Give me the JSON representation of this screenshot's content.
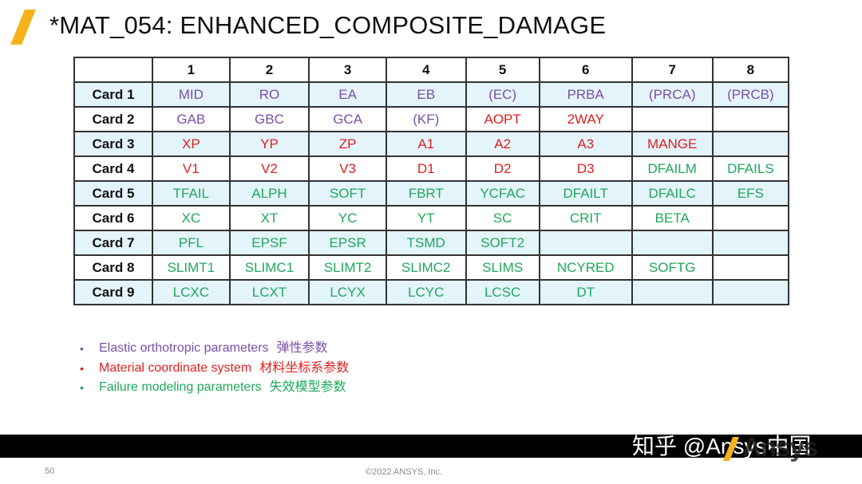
{
  "slide": {
    "title": "*MAT_054: ENHANCED_COMPOSITE_DAMAGE",
    "page_number": "50",
    "copyright": "©2022 ANSYS, Inc.",
    "watermark": "知乎 @Ansys中国",
    "logo_text": "Ansys"
  },
  "colors": {
    "accent_slash": "#f5b21b",
    "elastic": "#7a4fa6",
    "coordinate": "#e01f1f",
    "failure": "#1fa85a",
    "row_shade": "#e4f4fb"
  },
  "table": {
    "columns": [
      "",
      "1",
      "2",
      "3",
      "4",
      "5",
      "6",
      "7",
      "8"
    ],
    "rows": [
      {
        "label": "Card 1",
        "cells": [
          {
            "text": "MID",
            "cat": "purple"
          },
          {
            "text": "RO",
            "cat": "purple"
          },
          {
            "text": "EA",
            "cat": "purple"
          },
          {
            "text": "EB",
            "cat": "purple"
          },
          {
            "text": "(EC)",
            "cat": "purple"
          },
          {
            "text": "PRBA",
            "cat": "purple"
          },
          {
            "text": "(PRCA)",
            "cat": "purple"
          },
          {
            "text": "(PRCB)",
            "cat": "purple"
          }
        ]
      },
      {
        "label": "Card 2",
        "cells": [
          {
            "text": "GAB",
            "cat": "purple"
          },
          {
            "text": "GBC",
            "cat": "purple"
          },
          {
            "text": "GCA",
            "cat": "purple"
          },
          {
            "text": "(KF)",
            "cat": "purple"
          },
          {
            "text": "AOPT",
            "cat": "red"
          },
          {
            "text": "2WAY",
            "cat": "red"
          },
          {
            "text": "",
            "cat": ""
          },
          {
            "text": "",
            "cat": ""
          }
        ]
      },
      {
        "label": "Card 3",
        "cells": [
          {
            "text": "XP",
            "cat": "red"
          },
          {
            "text": "YP",
            "cat": "red"
          },
          {
            "text": "ZP",
            "cat": "red"
          },
          {
            "text": "A1",
            "cat": "red"
          },
          {
            "text": "A2",
            "cat": "red"
          },
          {
            "text": "A3",
            "cat": "red"
          },
          {
            "text": "MANGE",
            "cat": "red"
          },
          {
            "text": "",
            "cat": ""
          }
        ]
      },
      {
        "label": "Card 4",
        "cells": [
          {
            "text": "V1",
            "cat": "red"
          },
          {
            "text": "V2",
            "cat": "red"
          },
          {
            "text": "V3",
            "cat": "red"
          },
          {
            "text": "D1",
            "cat": "red"
          },
          {
            "text": "D2",
            "cat": "red"
          },
          {
            "text": "D3",
            "cat": "red"
          },
          {
            "text": "DFAILM",
            "cat": "green"
          },
          {
            "text": "DFAILS",
            "cat": "green"
          }
        ]
      },
      {
        "label": "Card 5",
        "cells": [
          {
            "text": "TFAIL",
            "cat": "green"
          },
          {
            "text": "ALPH",
            "cat": "green"
          },
          {
            "text": "SOFT",
            "cat": "green"
          },
          {
            "text": "FBRT",
            "cat": "green"
          },
          {
            "text": "YCFAC",
            "cat": "green"
          },
          {
            "text": "DFAILT",
            "cat": "green"
          },
          {
            "text": "DFAILC",
            "cat": "green"
          },
          {
            "text": "EFS",
            "cat": "green"
          }
        ]
      },
      {
        "label": "Card 6",
        "cells": [
          {
            "text": "XC",
            "cat": "green"
          },
          {
            "text": "XT",
            "cat": "green"
          },
          {
            "text": "YC",
            "cat": "green"
          },
          {
            "text": "YT",
            "cat": "green"
          },
          {
            "text": "SC",
            "cat": "green"
          },
          {
            "text": "CRIT",
            "cat": "green"
          },
          {
            "text": "BETA",
            "cat": "green"
          },
          {
            "text": "",
            "cat": ""
          }
        ]
      },
      {
        "label": "Card 7",
        "cells": [
          {
            "text": "PFL",
            "cat": "green"
          },
          {
            "text": "EPSF",
            "cat": "green"
          },
          {
            "text": "EPSR",
            "cat": "green"
          },
          {
            "text": "TSMD",
            "cat": "green"
          },
          {
            "text": "SOFT2",
            "cat": "green"
          },
          {
            "text": "",
            "cat": ""
          },
          {
            "text": "",
            "cat": ""
          },
          {
            "text": "",
            "cat": ""
          }
        ]
      },
      {
        "label": "Card 8",
        "cells": [
          {
            "text": "SLIMT1",
            "cat": "green"
          },
          {
            "text": "SLIMC1",
            "cat": "green"
          },
          {
            "text": "SLIMT2",
            "cat": "green"
          },
          {
            "text": "SLIMC2",
            "cat": "green"
          },
          {
            "text": "SLIMS",
            "cat": "green"
          },
          {
            "text": "NCYRED",
            "cat": "green"
          },
          {
            "text": "SOFTG",
            "cat": "green"
          },
          {
            "text": "",
            "cat": ""
          }
        ]
      },
      {
        "label": "Card 9",
        "cells": [
          {
            "text": "LCXC",
            "cat": "green"
          },
          {
            "text": "LCXT",
            "cat": "green"
          },
          {
            "text": "LCYX",
            "cat": "green"
          },
          {
            "text": "LCYC",
            "cat": "green"
          },
          {
            "text": "LCSC",
            "cat": "green"
          },
          {
            "text": "DT",
            "cat": "green"
          },
          {
            "text": "",
            "cat": ""
          },
          {
            "text": "",
            "cat": ""
          }
        ]
      }
    ]
  },
  "legend": [
    {
      "en": "Elastic orthotropic parameters",
      "zh": "弹性参数",
      "cat": "purple"
    },
    {
      "en": "Material coordinate system",
      "zh": "材料坐标系参数",
      "cat": "red"
    },
    {
      "en": "Failure modeling parameters",
      "zh": "失效模型参数",
      "cat": "green"
    }
  ]
}
